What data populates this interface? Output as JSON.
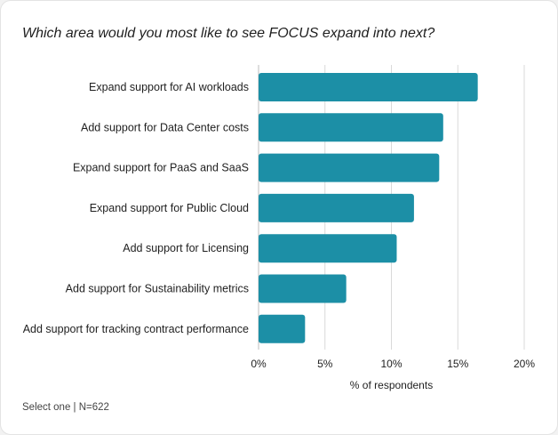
{
  "chart_data": {
    "type": "bar",
    "orientation": "horizontal",
    "title": "Which area would you most like to see FOCUS expand into next?",
    "categories": [
      "Expand support for AI workloads",
      "Add support for Data Center costs",
      "Expand support for PaaS and SaaS",
      "Expand support for Public Cloud",
      "Add support for Licensing",
      "Add support for Sustainability metrics",
      "Add support for tracking contract performance"
    ],
    "values": [
      16.5,
      13.9,
      13.6,
      11.7,
      10.4,
      6.6,
      3.5
    ],
    "xlabel": "% of respondents",
    "ylabel": "",
    "xlim": [
      0,
      20
    ],
    "xticks": [
      0,
      5,
      10,
      15,
      20
    ],
    "xtick_labels": [
      "0%",
      "5%",
      "10%",
      "15%",
      "20%"
    ],
    "grid": true,
    "bar_color": "#1c8fa6",
    "footnote": "Select one | N=622"
  }
}
